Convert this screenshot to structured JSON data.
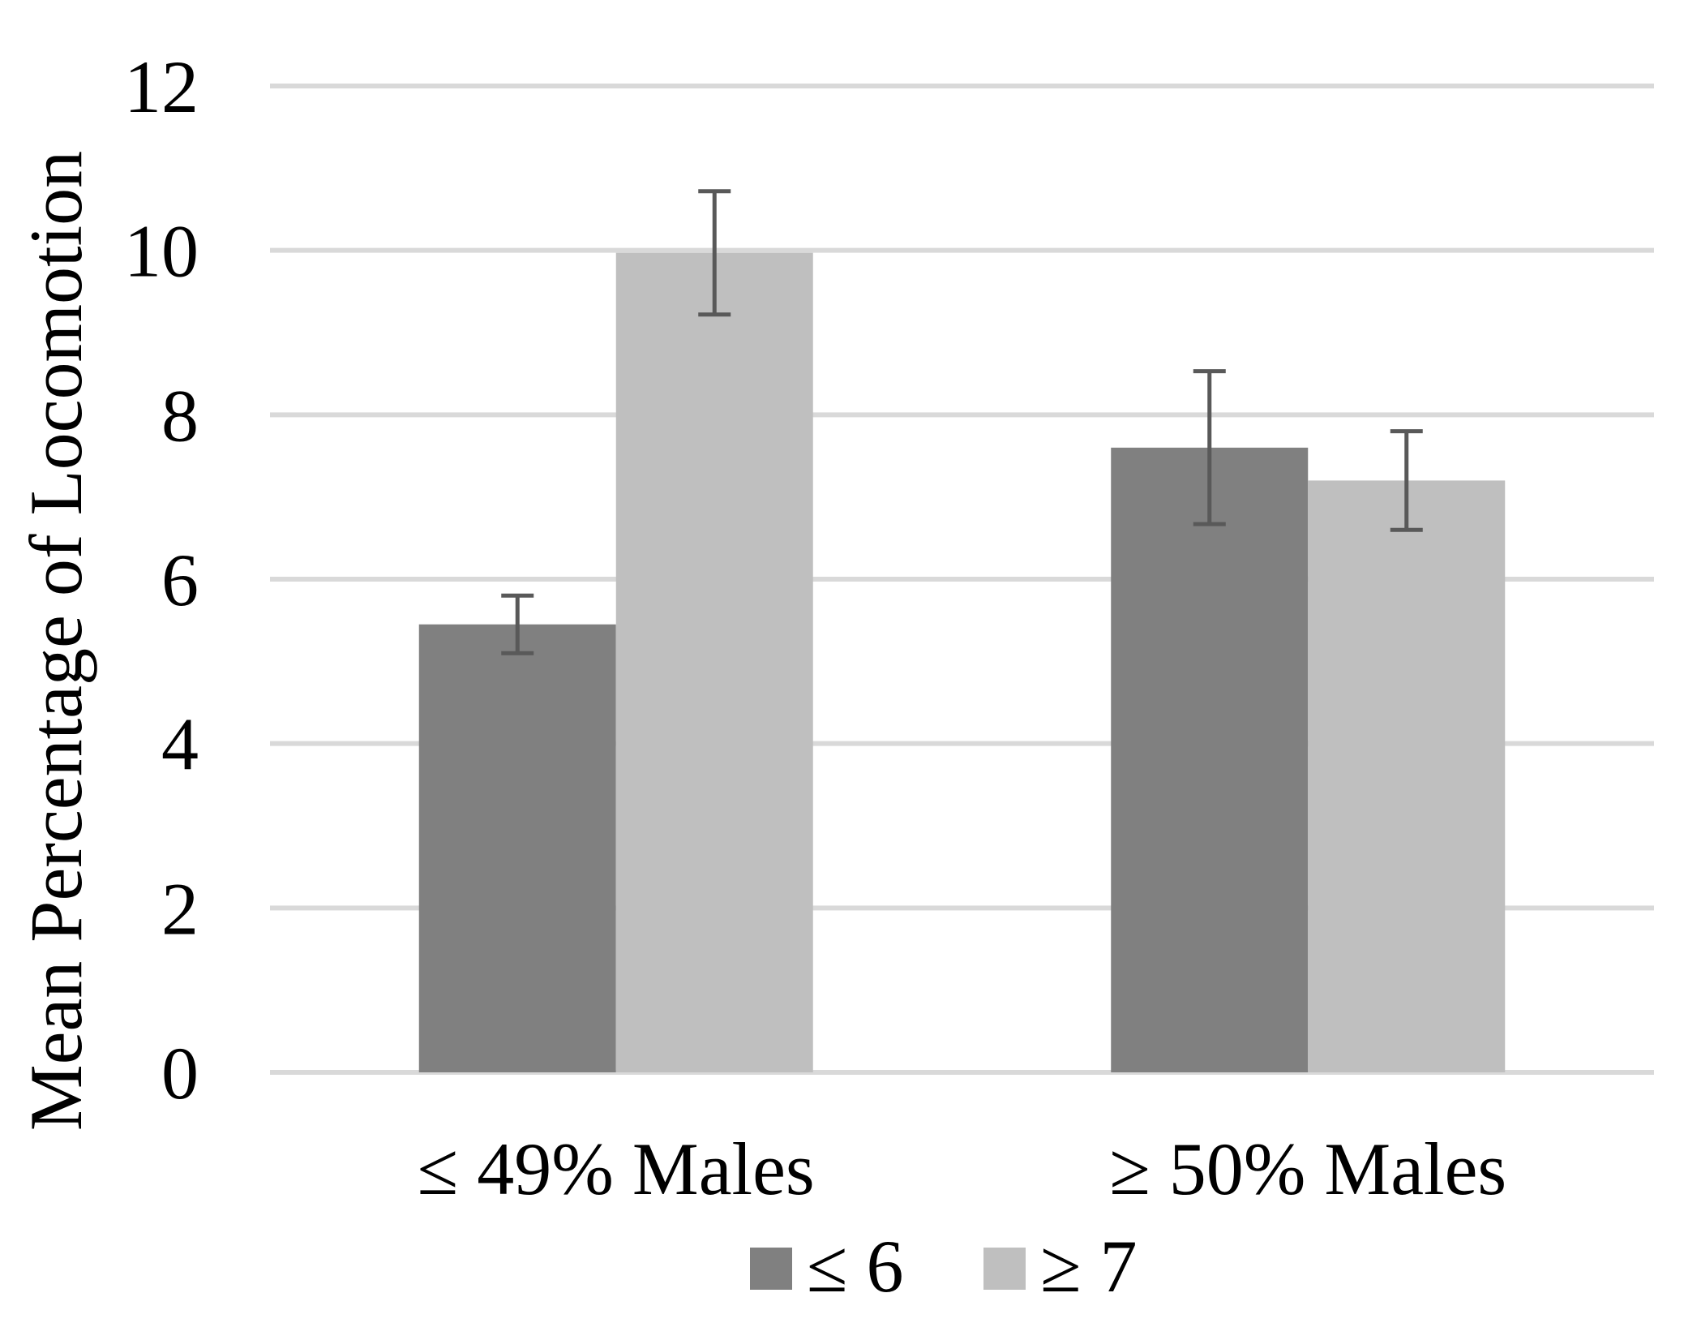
{
  "chart_data": {
    "type": "bar",
    "title": "",
    "xlabel": "",
    "ylabel": "Mean Percentage of Locomotion",
    "categories": [
      "≤ 49% Males",
      "≥ 50% Males"
    ],
    "series": [
      {
        "name": "≤ 6",
        "color": "#808080",
        "values": [
          5.45,
          7.6
        ],
        "error": [
          0.35,
          0.93
        ]
      },
      {
        "name": "≥ 7",
        "color": "#bfbfbf",
        "values": [
          9.97,
          7.2
        ],
        "error": [
          0.75,
          0.6
        ]
      }
    ],
    "ylim": [
      0,
      12
    ],
    "yticks": [
      "0",
      "2",
      "4",
      "6",
      "8",
      "10",
      "12"
    ],
    "grid": true,
    "legend_position": "bottom",
    "colors": {
      "gridline": "#d9d9d9",
      "errorbar": "#595959"
    }
  }
}
